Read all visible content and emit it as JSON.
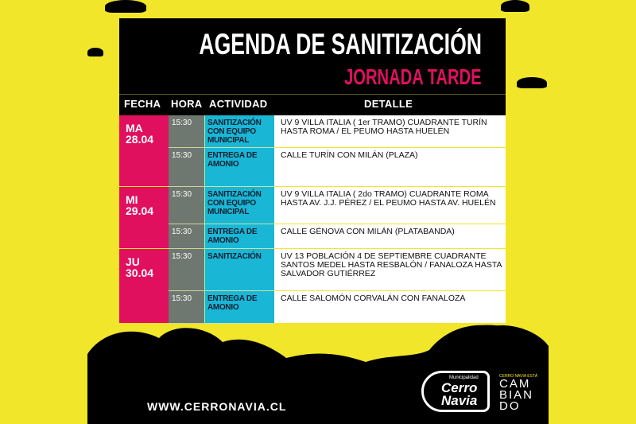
{
  "title": "AGENDA DE SANITIZACIÓN",
  "subtitle": "JORNADA TARDE",
  "headers": {
    "fecha": "FECHA",
    "hora": "HORA",
    "actividad": "ACTIVIDAD",
    "detalle": "DETALLE"
  },
  "days": [
    {
      "day": "MA",
      "date": "28.04"
    },
    {
      "day": "MI",
      "date": "29.04"
    },
    {
      "day": "JU",
      "date": "30.04"
    }
  ],
  "rows": [
    {
      "hora": "15:30",
      "actividad": "SANITIZACIÓN CON EQUIPO MUNICIPAL",
      "detalle": "UV 9 VILLA ITALIA ( 1er TRAMO) CUADRANTE TURÍN HASTA ROMA / EL PEUMO HASTA HUELÉN"
    },
    {
      "hora": "15:30",
      "actividad": "ENTREGA DE AMONIO",
      "detalle": "CALLE  TURÍN CON MILÁN (PLAZA)"
    },
    {
      "hora": "15:30",
      "actividad": "SANITIZACIÓN CON EQUIPO MUNICIPAL",
      "detalle": "UV 9 VILLA ITALIA ( 2do TRAMO) CUADRANTE ROMA HASTA AV. J.J. PÉREZ  / EL PEUMO HASTA AV. HUELÉN"
    },
    {
      "hora": "15:30",
      "actividad": "ENTREGA DE AMONIO",
      "detalle": "CALLE  GÉNOVA CON MILÁN (PLATABANDA)"
    },
    {
      "hora": "15:30",
      "actividad": "SANITIZACIÓN",
      "detalle": "UV 13 POBLACIÓN 4 DE SEPTIEMBRE CUADRANTE SANTOS MEDEL HASTA RESBALÓN / FANALOZA HASTA SALVADOR GUTIÉRREZ"
    },
    {
      "hora": "15:30",
      "actividad": "ENTREGA DE AMONIO",
      "detalle": "CALLE SALOMÓN CORVALÁN CON FANALOZA"
    }
  ],
  "footer": {
    "url": "WWW.CERRONAVIA.CL",
    "logo_small": "Municipalidad",
    "logo_line1": "Cerro",
    "logo_line2": "Navia",
    "slogan_small": "CERRO NAVIA ESTÁ",
    "slogan": [
      "CAM",
      "BIAN",
      "DO"
    ]
  },
  "colors": {
    "background": "#f1e629",
    "magenta": "#e0105f",
    "cyan": "#1ab6d6",
    "gray": "#6e7770",
    "black": "#000000"
  }
}
